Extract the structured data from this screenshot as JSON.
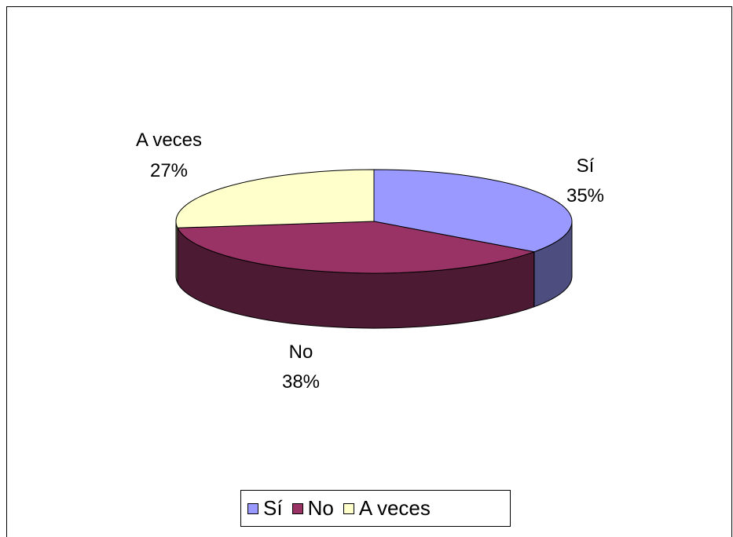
{
  "chart_data": {
    "type": "pie",
    "style": "3d",
    "categories": [
      "Sí",
      "No",
      "A veces"
    ],
    "values": [
      35,
      38,
      27
    ],
    "value_labels": [
      "35%",
      "38%",
      "27%"
    ],
    "colors": [
      "#9999ff",
      "#993366",
      "#ffffcc"
    ],
    "side_colors": [
      "#4d4d80",
      "#4d1a33",
      "#808066"
    ],
    "legend_placement": "bottom",
    "title": "",
    "grid": false
  }
}
